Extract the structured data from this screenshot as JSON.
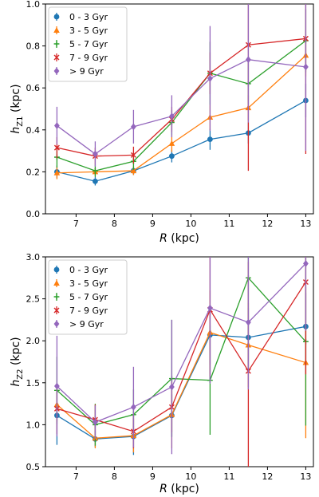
{
  "chart_data": [
    {
      "type": "line",
      "x": [
        6.5,
        7.5,
        8.5,
        9.5,
        10.5,
        11.5,
        13
      ],
      "xlabel": "R (kpc)",
      "ylabel": "h_Z1 (kpc)",
      "xlim": [
        6.2,
        13.2
      ],
      "ylim": [
        0.0,
        1.0
      ],
      "xticks": [
        "7",
        "8",
        "9",
        "10",
        "11",
        "12",
        "13"
      ],
      "yticks": [
        "0.0",
        "0.2",
        "0.4",
        "0.6",
        "0.8",
        "1.0"
      ],
      "legend": "top-left",
      "series": [
        {
          "name": "0 - 3 Gyr",
          "color": "#1f77b4",
          "marker": "circle",
          "values": [
            0.2,
            0.155,
            0.205,
            0.275,
            0.355,
            0.385,
            0.54
          ],
          "err": [
            0.03,
            0.02,
            0.02,
            0.03,
            0.05,
            0.05,
            0.08
          ]
        },
        {
          "name": "3 - 5 Gyr",
          "color": "#ff7f0e",
          "marker": "triangle",
          "values": [
            0.195,
            0.2,
            0.205,
            0.335,
            0.46,
            0.505,
            0.755
          ],
          "err": [
            0.03,
            0.02,
            0.02,
            0.04,
            0.06,
            0.06,
            0.1
          ]
        },
        {
          "name": "5 - 7 Gyr",
          "color": "#2ca02c",
          "marker": "plus",
          "values": [
            0.27,
            0.205,
            0.25,
            0.435,
            0.67,
            0.62,
            0.825
          ],
          "err": [
            0.05,
            0.03,
            0.04,
            0.06,
            0.15,
            0.1,
            0.15
          ]
        },
        {
          "name": "7 - 9 Gyr",
          "color": "#d62728",
          "marker": "x",
          "values": [
            0.315,
            0.275,
            0.28,
            0.45,
            0.67,
            0.805,
            0.835
          ],
          "err": [
            0.05,
            0.04,
            0.04,
            0.06,
            0.1,
            0.6,
            0.55
          ]
        },
        {
          "name": "> 9 Gyr",
          "color": "#9467bd",
          "marker": "diamond",
          "values": [
            0.42,
            0.285,
            0.415,
            0.465,
            0.645,
            0.735,
            0.7
          ],
          "err": [
            0.09,
            0.06,
            0.08,
            0.1,
            0.25,
            0.3,
            0.4
          ]
        }
      ]
    },
    {
      "type": "line",
      "x": [
        6.5,
        7.5,
        8.5,
        9.5,
        10.5,
        11.5,
        13
      ],
      "xlabel": "R (kpc)",
      "ylabel": "h_Z2 (kpc)",
      "xlim": [
        6.2,
        13.2
      ],
      "ylim": [
        0.5,
        3.0
      ],
      "xticks": [
        "7",
        "8",
        "9",
        "10",
        "11",
        "12",
        "13"
      ],
      "yticks": [
        "0.5",
        "1.0",
        "1.5",
        "2.0",
        "2.5",
        "3.0"
      ],
      "legend": "top-left",
      "series": [
        {
          "name": "0 - 3 Gyr",
          "color": "#1f77b4",
          "marker": "circle",
          "values": [
            1.11,
            0.83,
            0.86,
            1.11,
            2.07,
            2.04,
            2.17
          ],
          "err": [
            0.35,
            0.1,
            0.22,
            0.25,
            0.35,
            0.35,
            0.4
          ]
        },
        {
          "name": "3 - 5 Gyr",
          "color": "#ff7f0e",
          "marker": "triangle",
          "values": [
            1.24,
            0.84,
            0.87,
            1.12,
            2.1,
            1.95,
            1.74
          ],
          "err": [
            0.2,
            0.12,
            0.2,
            0.4,
            0.5,
            0.5,
            0.9
          ]
        },
        {
          "name": "5 - 7 Gyr",
          "color": "#2ca02c",
          "marker": "plus",
          "values": [
            1.41,
            1.0,
            1.12,
            1.55,
            1.53,
            2.75,
            1.99
          ],
          "err": [
            0.4,
            0.25,
            0.3,
            0.7,
            0.65,
            1.1,
            1.0
          ]
        },
        {
          "name": "7 - 9 Gyr",
          "color": "#d62728",
          "marker": "x",
          "values": [
            1.19,
            1.06,
            0.92,
            1.21,
            2.37,
            1.64,
            2.7
          ],
          "err": [
            0.3,
            0.18,
            0.2,
            0.3,
            0.8,
            1.3,
            1.1
          ]
        },
        {
          "name": "> 9 Gyr",
          "color": "#9467bd",
          "marker": "diamond",
          "values": [
            1.46,
            1.03,
            1.21,
            1.45,
            2.39,
            2.22,
            2.92
          ],
          "err": [
            0.6,
            0.2,
            0.48,
            0.8,
            0.9,
            0.8,
            0.8
          ]
        }
      ]
    }
  ]
}
